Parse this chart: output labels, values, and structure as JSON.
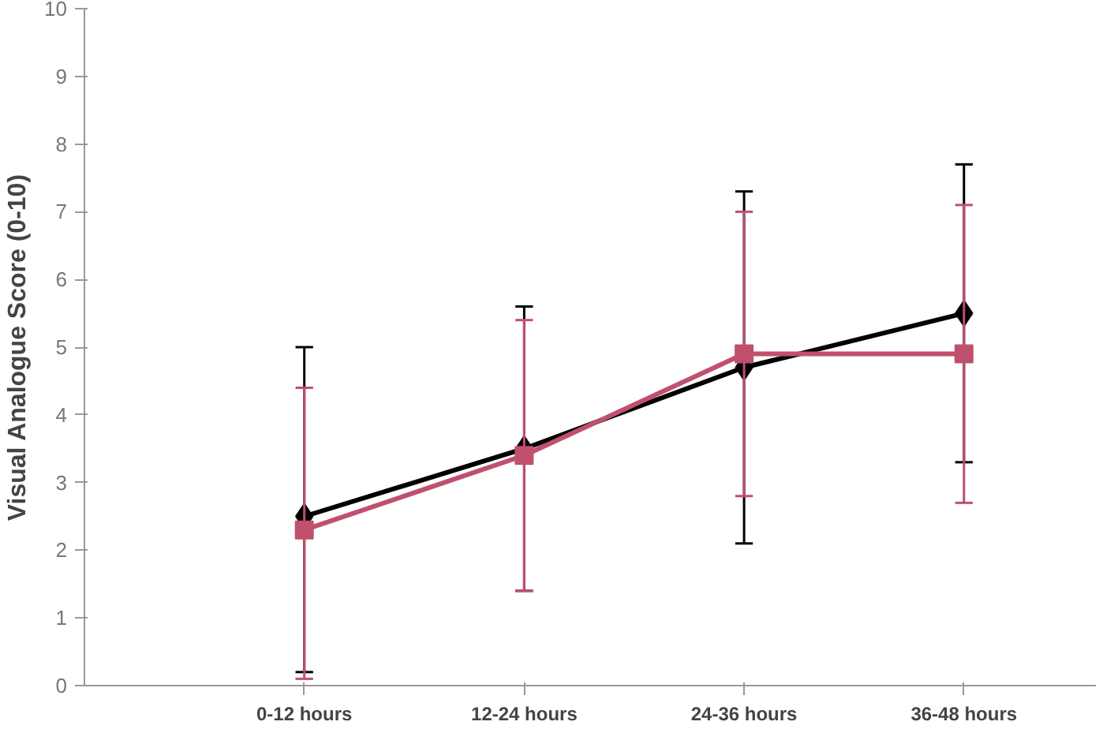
{
  "chart_data": {
    "type": "line",
    "ylabel": "Visual Analogue Score (0-10)",
    "categories": [
      "0-12 hours",
      "12-24 hours",
      "24-36 hours",
      "36-48 hours"
    ],
    "ylim": [
      0,
      10
    ],
    "yticks": [
      0,
      1,
      2,
      3,
      4,
      5,
      6,
      7,
      8,
      9,
      10
    ],
    "grid": false,
    "series": [
      {
        "color": "#000000",
        "marker": "diamond",
        "values": [
          2.5,
          3.5,
          4.7,
          5.5
        ],
        "errors": [
          [
            0.2,
            5.0
          ],
          [
            1.4,
            5.6
          ],
          [
            2.1,
            7.3
          ],
          [
            3.3,
            7.7
          ]
        ]
      },
      {
        "color": "#c0506e",
        "marker": "square",
        "values": [
          2.3,
          3.4,
          4.9,
          4.9
        ],
        "errors": [
          [
            0.1,
            4.4
          ],
          [
            1.4,
            5.4
          ],
          [
            2.8,
            7.0
          ],
          [
            2.7,
            7.1
          ]
        ]
      }
    ]
  }
}
